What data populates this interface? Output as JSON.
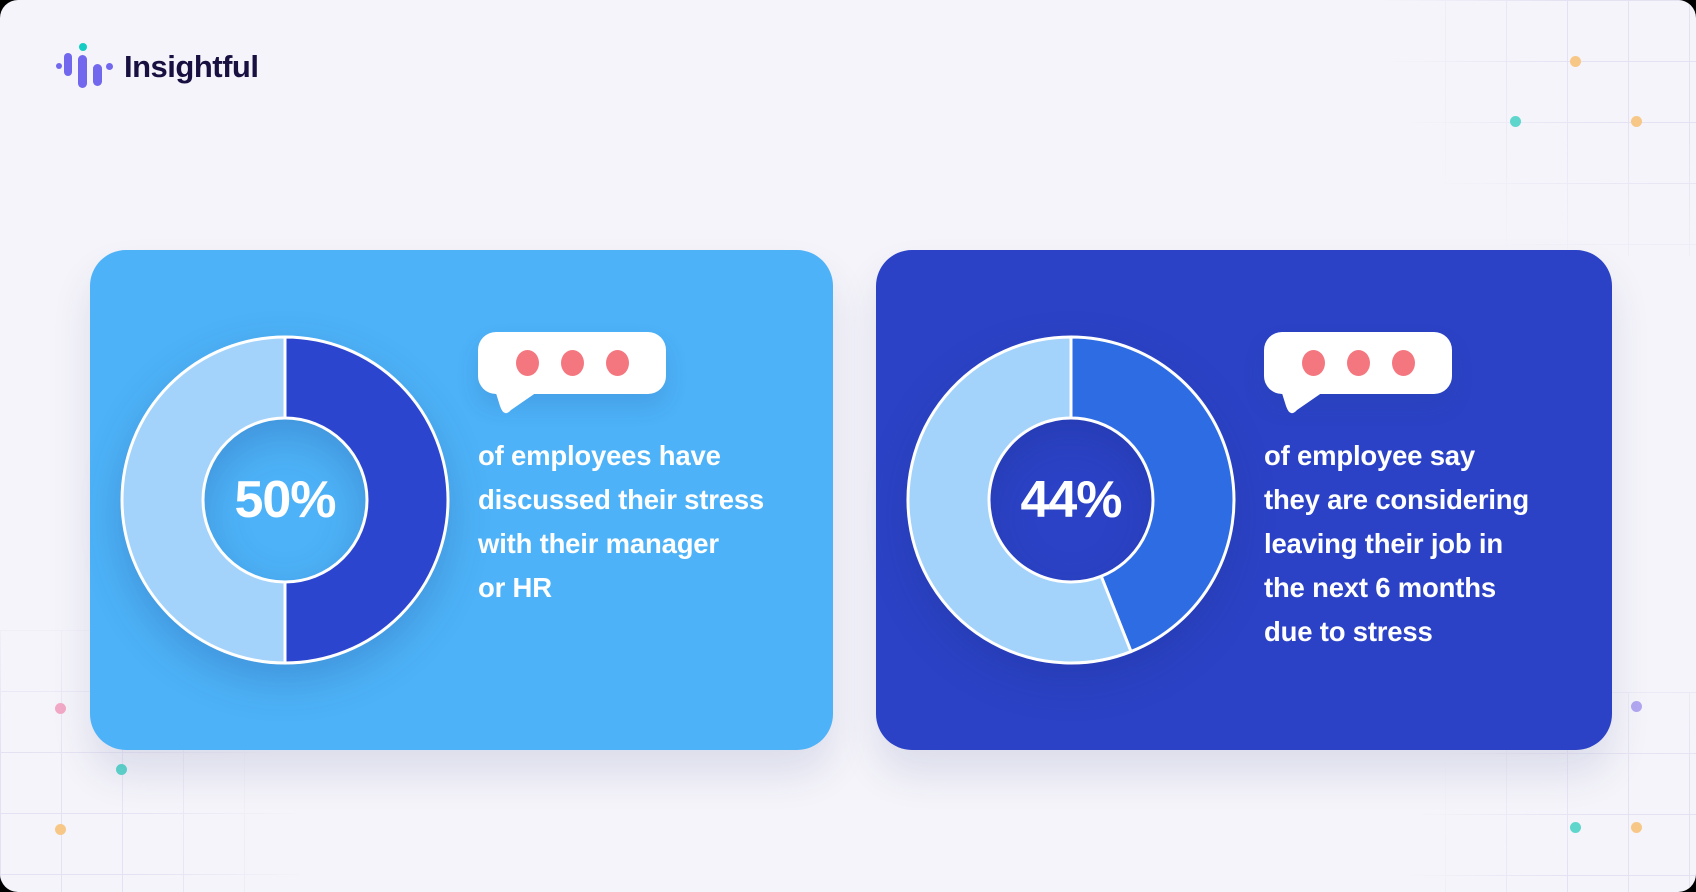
{
  "theme": {
    "page-bg": "#F5F4FA",
    "grid-line": "#E4E1F2",
    "card-blue-light": "#4DB2F7",
    "card-blue-dark": "#2B42C6",
    "bubble-dot": "#F4777F",
    "text-white": "#FFFFFF",
    "logo-purple": "#7168EE",
    "logo-teal": "#14CCC4",
    "logo-text": "#171040",
    "deco-orange": "#F7C787",
    "deco-teal": "#5FD6CC",
    "deco-pink": "#F2A9C6",
    "deco-lavender": "#B2A7F0"
  },
  "logo": {
    "brand": "Insightful"
  },
  "chart_data": [
    {
      "type": "pie",
      "variant": "donut",
      "label": "50%",
      "values": [
        50,
        50
      ],
      "segment_colors": [
        "#2C45CE",
        "#A3D2FA"
      ],
      "start_angle_deg": 0,
      "direction": "clockwise",
      "annotation_lines": [
        "of employees have",
        "discussed their stress",
        "with their manager",
        "or HR"
      ]
    },
    {
      "type": "pie",
      "variant": "donut",
      "label": "44%",
      "values": [
        44,
        56
      ],
      "segment_colors": [
        "#2E6CE4",
        "#A3D2FA"
      ],
      "start_angle_deg": 0,
      "direction": "clockwise",
      "annotation_lines": [
        "of employee say",
        "they are considering",
        "leaving their job in",
        "the next 6 months",
        "due to stress"
      ]
    }
  ]
}
